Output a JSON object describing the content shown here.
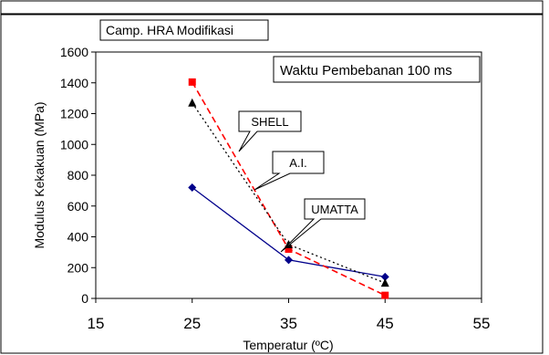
{
  "chart_data": {
    "type": "line",
    "title": "Camp. HRA Modifikasi",
    "annotation": "Waktu Pembebanan 100 ms",
    "xlabel": "Temperatur (ºC)",
    "ylabel": "Modulus Kekakuan (MPa)",
    "xlim": [
      15,
      55
    ],
    "ylim": [
      0,
      1600
    ],
    "x_ticks": [
      15,
      25,
      35,
      45,
      55
    ],
    "y_ticks": [
      0,
      200,
      400,
      600,
      800,
      1000,
      1200,
      1400,
      1600
    ],
    "grid": false,
    "legend": "callouts",
    "x": [
      25,
      35,
      45
    ],
    "series": [
      {
        "name": "UMATTA",
        "values": [
          720,
          250,
          140
        ],
        "color": "#00008b",
        "dash": "solid",
        "marker": "diamond"
      },
      {
        "name": "SHELL",
        "values": [
          1405,
          320,
          20
        ],
        "color": "#ff0000",
        "dash": "dashed",
        "marker": "square"
      },
      {
        "name": "A.I.",
        "values": [
          1270,
          350,
          100
        ],
        "color": "#000000",
        "dash": "dotted",
        "marker": "triangle"
      }
    ]
  }
}
